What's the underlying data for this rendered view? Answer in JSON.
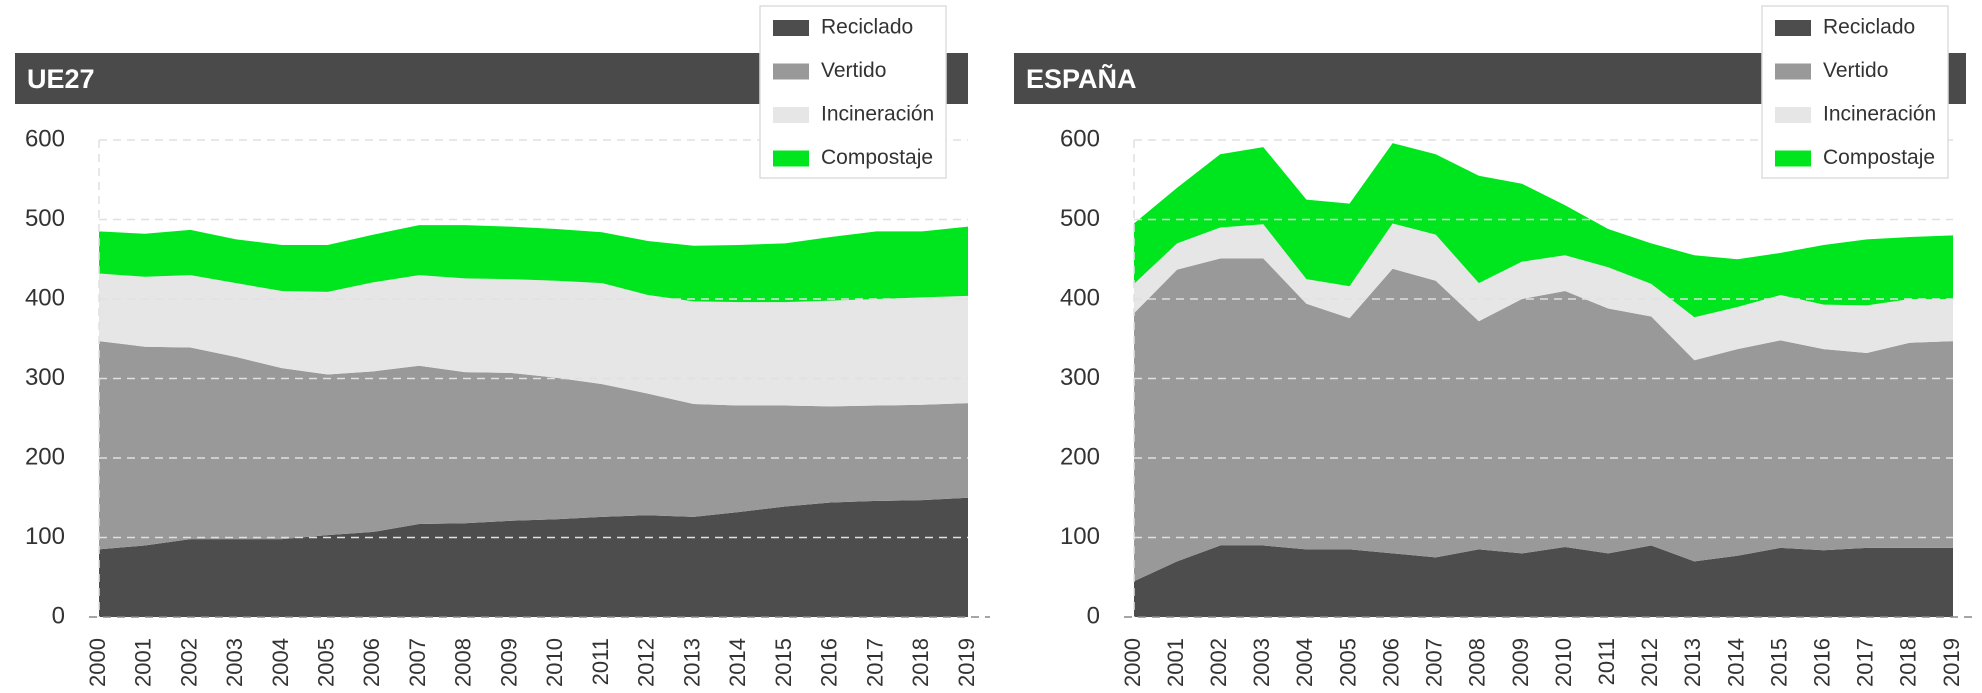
{
  "chart_data": [
    {
      "type": "stacked-area",
      "title": "UE27",
      "categories": [
        "2000",
        "2001",
        "2002",
        "2003",
        "2004",
        "2005",
        "2006",
        "2007",
        "2008",
        "2009",
        "2010",
        "2011",
        "2012",
        "2013",
        "2014",
        "2015",
        "2016",
        "2017",
        "2018",
        "2019"
      ],
      "series": [
        {
          "name": "Reciclado",
          "color": "#4d4d4d",
          "values": [
            85,
            90,
            98,
            98,
            98,
            103,
            107,
            117,
            118,
            121,
            123,
            126,
            128,
            126,
            132,
            139,
            144,
            146,
            147,
            150
          ]
        },
        {
          "name": "Vertido",
          "color": "#999999",
          "values": [
            262,
            250,
            241,
            229,
            215,
            202,
            202,
            199,
            190,
            186,
            178,
            167,
            153,
            142,
            134,
            127,
            121,
            120,
            120,
            119
          ]
        },
        {
          "name": "Incineración",
          "color": "#e6e6e6",
          "values": [
            85,
            88,
            91,
            93,
            97,
            104,
            112,
            114,
            118,
            118,
            122,
            127,
            124,
            129,
            130,
            130,
            133,
            134,
            135,
            135
          ]
        },
        {
          "name": "Compostaje",
          "color": "#00e61e",
          "values": [
            53,
            54,
            57,
            55,
            58,
            59,
            60,
            63,
            67,
            66,
            65,
            64,
            68,
            70,
            72,
            74,
            80,
            85,
            83,
            87
          ]
        }
      ],
      "ylim": [
        0,
        600
      ],
      "yticks": [
        0,
        100,
        200,
        300,
        400,
        500,
        600
      ],
      "grid": true,
      "legend": "upper right"
    },
    {
      "type": "stacked-area",
      "title": "ESPAÑA",
      "categories": [
        "2000",
        "2001",
        "2002",
        "2003",
        "2004",
        "2005",
        "2006",
        "2007",
        "2008",
        "2009",
        "2010",
        "2011",
        "2012",
        "2013",
        "2014",
        "2015",
        "2016",
        "2017",
        "2018",
        "2019"
      ],
      "series": [
        {
          "name": "Reciclado",
          "color": "#4d4d4d",
          "values": [
            45,
            70,
            90,
            90,
            85,
            85,
            80,
            75,
            85,
            80,
            88,
            80,
            90,
            70,
            77,
            87,
            84,
            87,
            87,
            87
          ]
        },
        {
          "name": "Vertido",
          "color": "#999999",
          "values": [
            337,
            367,
            361,
            361,
            309,
            291,
            358,
            348,
            287,
            320,
            322,
            308,
            288,
            253,
            260,
            261,
            253,
            245,
            258,
            260
          ]
        },
        {
          "name": "Incineración",
          "color": "#e6e6e6",
          "values": [
            37,
            33,
            39,
            43,
            31,
            40,
            57,
            58,
            48,
            47,
            45,
            52,
            41,
            54,
            53,
            57,
            56,
            60,
            55,
            53
          ]
        },
        {
          "name": "Compostaje",
          "color": "#00e61e",
          "values": [
            76,
            70,
            92,
            97,
            100,
            104,
            101,
            101,
            135,
            98,
            63,
            48,
            51,
            78,
            60,
            53,
            75,
            83,
            78,
            80
          ]
        }
      ],
      "ylim": [
        0,
        600
      ],
      "yticks": [
        0,
        100,
        200,
        300,
        400,
        500,
        600
      ],
      "grid": true,
      "legend": "upper right"
    }
  ]
}
